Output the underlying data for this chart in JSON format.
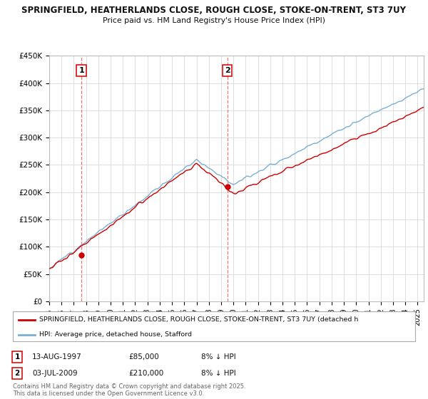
{
  "title_line1": "SPRINGFIELD, HEATHERLANDS CLOSE, ROUGH CLOSE, STOKE-ON-TRENT, ST3 7UY",
  "title_line2": "Price paid vs. HM Land Registry's House Price Index (HPI)",
  "ylim": [
    0,
    450000
  ],
  "yticks": [
    0,
    50000,
    100000,
    150000,
    200000,
    250000,
    300000,
    350000,
    400000,
    450000
  ],
  "ytick_labels": [
    "£0",
    "£50K",
    "£100K",
    "£150K",
    "£200K",
    "£250K",
    "£300K",
    "£350K",
    "£400K",
    "£450K"
  ],
  "x_start_year": 1995.0,
  "x_end_year": 2025.5,
  "red_line_color": "#cc0000",
  "blue_line_color": "#7ab0d4",
  "vline_color": "#ee6666",
  "legend_red_label": "SPRINGFIELD, HEATHERLANDS CLOSE, ROUGH CLOSE, STOKE-ON-TRENT, ST3 7UY (detached h",
  "legend_blue_label": "HPI: Average price, detached house, Stafford",
  "footer": "Contains HM Land Registry data © Crown copyright and database right 2025.\nThis data is licensed under the Open Government Licence v3.0.",
  "bg_color": "#ffffff",
  "grid_color": "#dddddd",
  "year1": 1997.62,
  "year2": 2009.5,
  "val1": 85000,
  "val2": 210000
}
